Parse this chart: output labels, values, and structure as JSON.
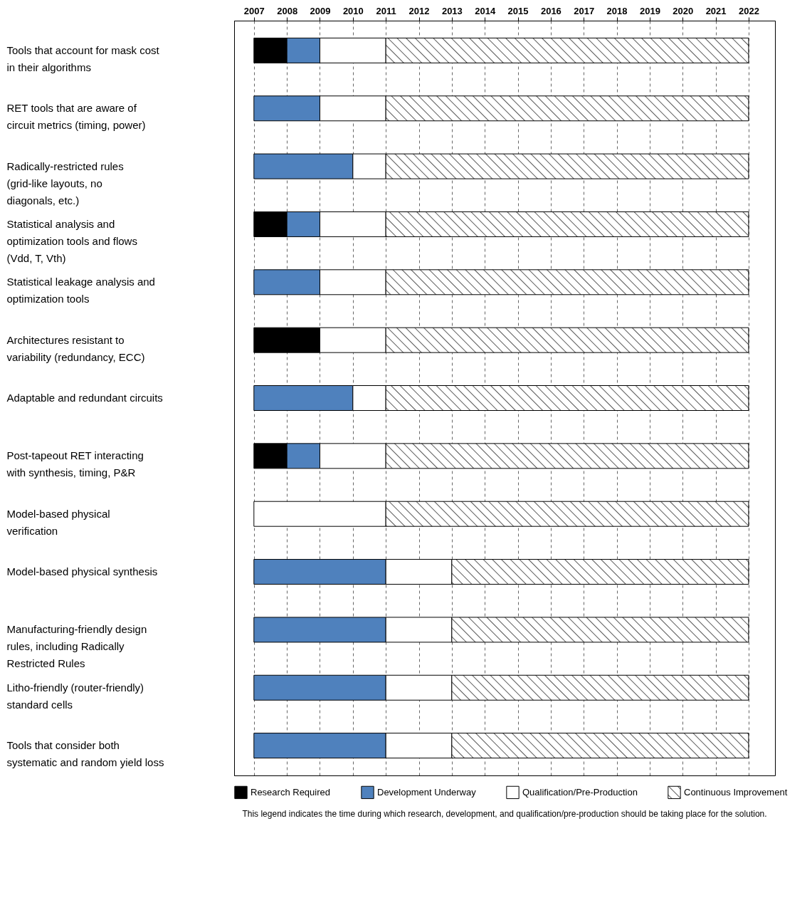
{
  "chart_data": {
    "type": "bar",
    "orientation": "horizontal",
    "categories": [
      "Tools that account for mask cost in their algorithms",
      "RET tools that are aware of circuit metrics (timing, power)",
      "Radically-restricted rules (grid-like layouts, no diagonals, etc.)",
      "Statistical analysis and optimization tools and flows (Vdd, T, Vth)",
      "Statistical leakage analysis and optimization tools",
      "Architectures resistant to variability (redundancy, ECC)",
      "Adaptable and redundant circuits",
      "Post-tapeout RET interacting with synthesis, timing, P&R",
      "Model-based physical verification",
      "Model-based physical synthesis",
      "Manufacturing-friendly design rules, including Radically Restricted Rules",
      "Litho-friendly (router-friendly) standard cells",
      "Tools that consider both systematic and random yield loss"
    ],
    "series": [
      {
        "name": "Research Required",
        "color": "#000000",
        "base": [
          2007,
          null,
          null,
          2007,
          null,
          2007,
          null,
          2007,
          null,
          null,
          null,
          null,
          null
        ],
        "values": [
          1,
          null,
          null,
          1,
          null,
          2,
          null,
          1,
          null,
          null,
          null,
          null,
          null
        ]
      },
      {
        "name": "Development Underway",
        "color": "#4f81bd",
        "base": [
          2008,
          2007,
          2007,
          2008,
          2007,
          null,
          2007,
          2008,
          null,
          2007,
          2007,
          2007,
          2007
        ],
        "values": [
          1,
          2,
          3,
          1,
          2,
          null,
          3,
          1,
          null,
          4,
          4,
          4,
          4
        ]
      },
      {
        "name": "Qualification/Pre-Production",
        "color": "#ffffff",
        "base": [
          2009,
          2009,
          2010,
          2009,
          2009,
          2009,
          2010,
          2009,
          2007,
          2011,
          2011,
          2011,
          2011
        ],
        "values": [
          2,
          2,
          1,
          2,
          2,
          2,
          1,
          2,
          4,
          2,
          2,
          2,
          2
        ]
      },
      {
        "name": "Continuous Improvement",
        "color": "#000000",
        "base": [
          2011,
          2011,
          2011,
          2011,
          2011,
          2011,
          2011,
          2011,
          2011,
          2013,
          2013,
          2013,
          2013
        ],
        "values": [
          11,
          11,
          11,
          11,
          11,
          11,
          11,
          11,
          11,
          9,
          9,
          9,
          9
        ]
      }
    ],
    "xlim": [
      2006.4,
      2022.8
    ],
    "xticks": [
      2007,
      2008,
      2009,
      2010,
      2011,
      2012,
      2013,
      2014,
      2015,
      2016,
      2017,
      2018,
      2019,
      2020,
      2021,
      2022
    ],
    "grid": "x",
    "legend": "bottom",
    "annotations": [
      "This legend indicates the time during which research, development, and qualification/pre-production should be taking place for the solution."
    ]
  }
}
